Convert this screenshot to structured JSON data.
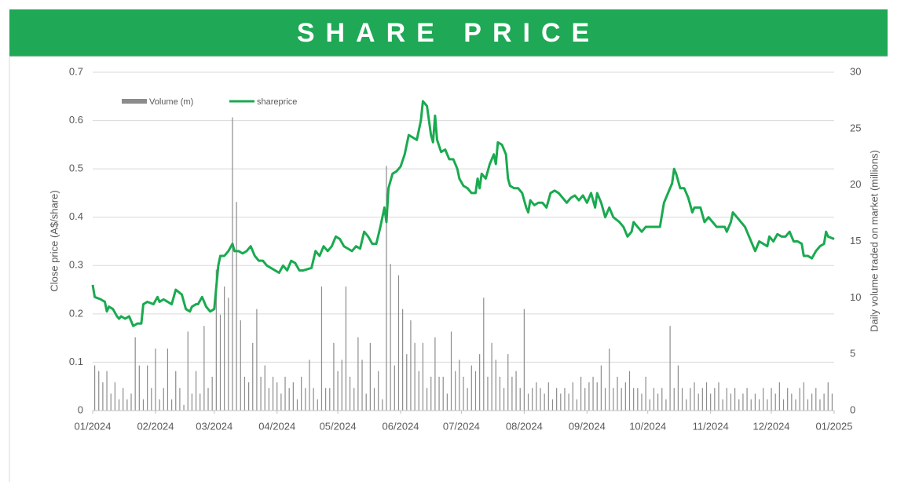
{
  "title": "SHARE PRICE",
  "chart_data": {
    "type": "line",
    "ylabel": "Close price (A$/share)",
    "y2label": "Daily volume traded on market (millions)",
    "xlim": [
      0,
      366
    ],
    "xticks": [
      {
        "value": 0,
        "label": "01/2024"
      },
      {
        "value": 31,
        "label": "02/2024"
      },
      {
        "value": 60,
        "label": "03/2024"
      },
      {
        "value": 91,
        "label": "04/2024"
      },
      {
        "value": 121,
        "label": "05/2024"
      },
      {
        "value": 152,
        "label": "06/2024"
      },
      {
        "value": 182,
        "label": "07/2024"
      },
      {
        "value": 213,
        "label": "08/2024"
      },
      {
        "value": 244,
        "label": "09/2024"
      },
      {
        "value": 274,
        "label": "10/2024"
      },
      {
        "value": 305,
        "label": "11/2024"
      },
      {
        "value": 335,
        "label": "12/2024"
      },
      {
        "value": 366,
        "label": "01/2025"
      }
    ],
    "ylim": [
      0,
      0.7
    ],
    "yticks": [
      0,
      0.1,
      0.2,
      0.3,
      0.4,
      0.5,
      0.6,
      0.7
    ],
    "y2lim": [
      0,
      30
    ],
    "y2ticks": [
      0,
      5,
      10,
      15,
      20,
      25,
      30
    ],
    "grid": true,
    "series": [
      {
        "name": "Volume (m)",
        "type": "bar",
        "axis": "y2",
        "color": "#8c8c8c",
        "x": [
          1,
          3,
          5,
          7,
          9,
          11,
          13,
          15,
          17,
          19,
          21,
          23,
          25,
          27,
          29,
          31,
          33,
          35,
          37,
          39,
          41,
          43,
          45,
          47,
          49,
          51,
          53,
          55,
          57,
          59,
          61,
          63,
          65,
          67,
          69,
          71,
          73,
          75,
          77,
          79,
          81,
          83,
          85,
          87,
          89,
          91,
          93,
          95,
          97,
          99,
          101,
          103,
          105,
          107,
          109,
          111,
          113,
          115,
          117,
          119,
          121,
          123,
          125,
          127,
          129,
          131,
          133,
          135,
          137,
          139,
          141,
          143,
          145,
          147,
          149,
          151,
          153,
          155,
          157,
          159,
          161,
          163,
          165,
          167,
          169,
          171,
          173,
          175,
          177,
          179,
          181,
          183,
          185,
          187,
          189,
          191,
          193,
          195,
          197,
          199,
          201,
          203,
          205,
          207,
          209,
          211,
          213,
          215,
          217,
          219,
          221,
          223,
          225,
          227,
          229,
          231,
          233,
          235,
          237,
          239,
          241,
          243,
          245,
          247,
          249,
          251,
          253,
          255,
          257,
          259,
          261,
          263,
          265,
          267,
          269,
          271,
          273,
          275,
          277,
          279,
          281,
          283,
          285,
          287,
          289,
          291,
          293,
          295,
          297,
          299,
          301,
          303,
          305,
          307,
          309,
          311,
          313,
          315,
          317,
          319,
          321,
          323,
          325,
          327,
          329,
          331,
          333,
          335,
          337,
          339,
          341,
          343,
          345,
          347,
          349,
          351,
          353,
          355,
          357,
          359,
          361,
          363,
          365
        ],
        "values": [
          4,
          3.5,
          2.5,
          3.5,
          1.5,
          2.5,
          1,
          2,
          1,
          1.5,
          6.5,
          4,
          1,
          4,
          2,
          5.5,
          1,
          2,
          5.5,
          1,
          3.5,
          2,
          0.5,
          7,
          1.5,
          3.5,
          1.5,
          7.5,
          2,
          3,
          12.5,
          8.5,
          11,
          10,
          26,
          18.5,
          8,
          3,
          2.5,
          6,
          9,
          3,
          4,
          2,
          3,
          2.5,
          1.5,
          3,
          2,
          2.5,
          1,
          3,
          2,
          4.5,
          2,
          1,
          11,
          2,
          2,
          6,
          3.5,
          4.5,
          11,
          3,
          2,
          6.5,
          4.5,
          1.5,
          6,
          2,
          3.5,
          1,
          21.7,
          13,
          4,
          12,
          9,
          5,
          8,
          6,
          3.5,
          6,
          2,
          3,
          6.5,
          3,
          3,
          1.5,
          7,
          3.5,
          4.5,
          3,
          2,
          4,
          3.5,
          5,
          10,
          3,
          6,
          4.5,
          3,
          2,
          5,
          3,
          3.5,
          2,
          9,
          1.5,
          2,
          2.5,
          2,
          1.5,
          2.5,
          1,
          2,
          1.5,
          2,
          1.5,
          2.5,
          1,
          3,
          2,
          2.5,
          3,
          2.5,
          4,
          2,
          5.5,
          2,
          3,
          2,
          2.5,
          3.5,
          2,
          2,
          1.5,
          3,
          1,
          2,
          1.5,
          2,
          1,
          7.5,
          2,
          4,
          2,
          1,
          2,
          2.5,
          1.5,
          2,
          2.5,
          1.5,
          2,
          2.5,
          1,
          2,
          1.5,
          2,
          1,
          1.5,
          2,
          1,
          1.5,
          1,
          2,
          1,
          2,
          1.5,
          2.5,
          1,
          2,
          1.5,
          1,
          2,
          2.5,
          1,
          1.5,
          2,
          1,
          1.5,
          2.5,
          1.5
        ]
      },
      {
        "name": "shareprice",
        "type": "line",
        "color": "#1aaa50",
        "x": [
          0,
          1,
          4,
          6,
          7,
          8,
          10,
          12,
          13,
          14,
          16,
          18,
          20,
          22,
          24,
          25,
          27,
          30,
          32,
          33,
          35,
          37,
          39,
          41,
          44,
          46,
          48,
          49,
          51,
          52,
          54,
          56,
          58,
          60,
          62,
          63,
          65,
          67,
          69,
          70,
          72,
          74,
          76,
          78,
          80,
          82,
          84,
          86,
          88,
          90,
          92,
          94,
          96,
          98,
          100,
          102,
          104,
          108,
          110,
          112,
          114,
          116,
          118,
          120,
          122,
          124,
          126,
          128,
          130,
          132,
          134,
          136,
          138,
          140,
          142,
          144,
          145,
          146,
          148,
          150,
          152,
          154,
          156,
          158,
          160,
          162,
          163,
          165,
          166,
          167,
          168,
          169,
          170,
          172,
          174,
          176,
          178,
          180,
          181,
          183,
          185,
          187,
          189,
          190,
          191,
          192,
          194,
          196,
          198,
          199,
          200,
          202,
          204,
          205,
          206,
          208,
          210,
          212,
          214,
          215,
          216,
          218,
          220,
          222,
          224,
          226,
          228,
          230,
          232,
          234,
          236,
          238,
          240,
          242,
          244,
          246,
          248,
          249,
          251,
          253,
          254,
          255,
          257,
          260,
          262,
          264,
          266,
          267,
          269,
          271,
          273,
          275,
          277,
          280,
          282,
          284,
          286,
          287,
          288,
          290,
          292,
          294,
          296,
          297,
          300,
          302,
          304,
          306,
          308,
          310,
          312,
          313,
          315,
          316,
          318,
          320,
          322,
          324,
          326,
          327,
          329,
          331,
          333,
          334,
          336,
          338,
          340,
          342,
          344,
          346,
          348,
          350,
          351,
          353,
          355,
          357,
          359,
          361,
          362,
          363,
          366
        ],
        "values": [
          0.26,
          0.235,
          0.23,
          0.225,
          0.205,
          0.215,
          0.21,
          0.195,
          0.19,
          0.195,
          0.19,
          0.195,
          0.175,
          0.18,
          0.18,
          0.22,
          0.225,
          0.22,
          0.235,
          0.225,
          0.23,
          0.225,
          0.22,
          0.25,
          0.24,
          0.21,
          0.205,
          0.215,
          0.22,
          0.22,
          0.235,
          0.215,
          0.205,
          0.21,
          0.3,
          0.32,
          0.32,
          0.33,
          0.345,
          0.33,
          0.33,
          0.325,
          0.33,
          0.34,
          0.32,
          0.31,
          0.31,
          0.3,
          0.295,
          0.29,
          0.285,
          0.3,
          0.29,
          0.31,
          0.305,
          0.29,
          0.29,
          0.295,
          0.33,
          0.32,
          0.34,
          0.33,
          0.34,
          0.36,
          0.355,
          0.34,
          0.335,
          0.33,
          0.34,
          0.335,
          0.37,
          0.36,
          0.345,
          0.345,
          0.38,
          0.42,
          0.39,
          0.46,
          0.49,
          0.495,
          0.505,
          0.53,
          0.57,
          0.565,
          0.56,
          0.6,
          0.64,
          0.63,
          0.6,
          0.57,
          0.555,
          0.61,
          0.56,
          0.535,
          0.54,
          0.52,
          0.52,
          0.5,
          0.48,
          0.465,
          0.46,
          0.45,
          0.45,
          0.48,
          0.46,
          0.49,
          0.48,
          0.51,
          0.53,
          0.51,
          0.555,
          0.55,
          0.53,
          0.48,
          0.465,
          0.46,
          0.46,
          0.45,
          0.42,
          0.41,
          0.435,
          0.425,
          0.43,
          0.43,
          0.42,
          0.45,
          0.455,
          0.45,
          0.44,
          0.43,
          0.44,
          0.445,
          0.435,
          0.445,
          0.43,
          0.45,
          0.42,
          0.45,
          0.43,
          0.4,
          0.41,
          0.42,
          0.4,
          0.39,
          0.38,
          0.36,
          0.37,
          0.39,
          0.38,
          0.37,
          0.38,
          0.38,
          0.38,
          0.38,
          0.43,
          0.45,
          0.47,
          0.5,
          0.49,
          0.46,
          0.46,
          0.44,
          0.41,
          0.42,
          0.42,
          0.39,
          0.4,
          0.39,
          0.38,
          0.38,
          0.38,
          0.37,
          0.39,
          0.41,
          0.4,
          0.39,
          0.38,
          0.36,
          0.34,
          0.33,
          0.35,
          0.345,
          0.34,
          0.36,
          0.35,
          0.365,
          0.36,
          0.36,
          0.37,
          0.35,
          0.35,
          0.345,
          0.32,
          0.32,
          0.315,
          0.33,
          0.34,
          0.345,
          0.37,
          0.36,
          0.355
        ]
      }
    ]
  }
}
